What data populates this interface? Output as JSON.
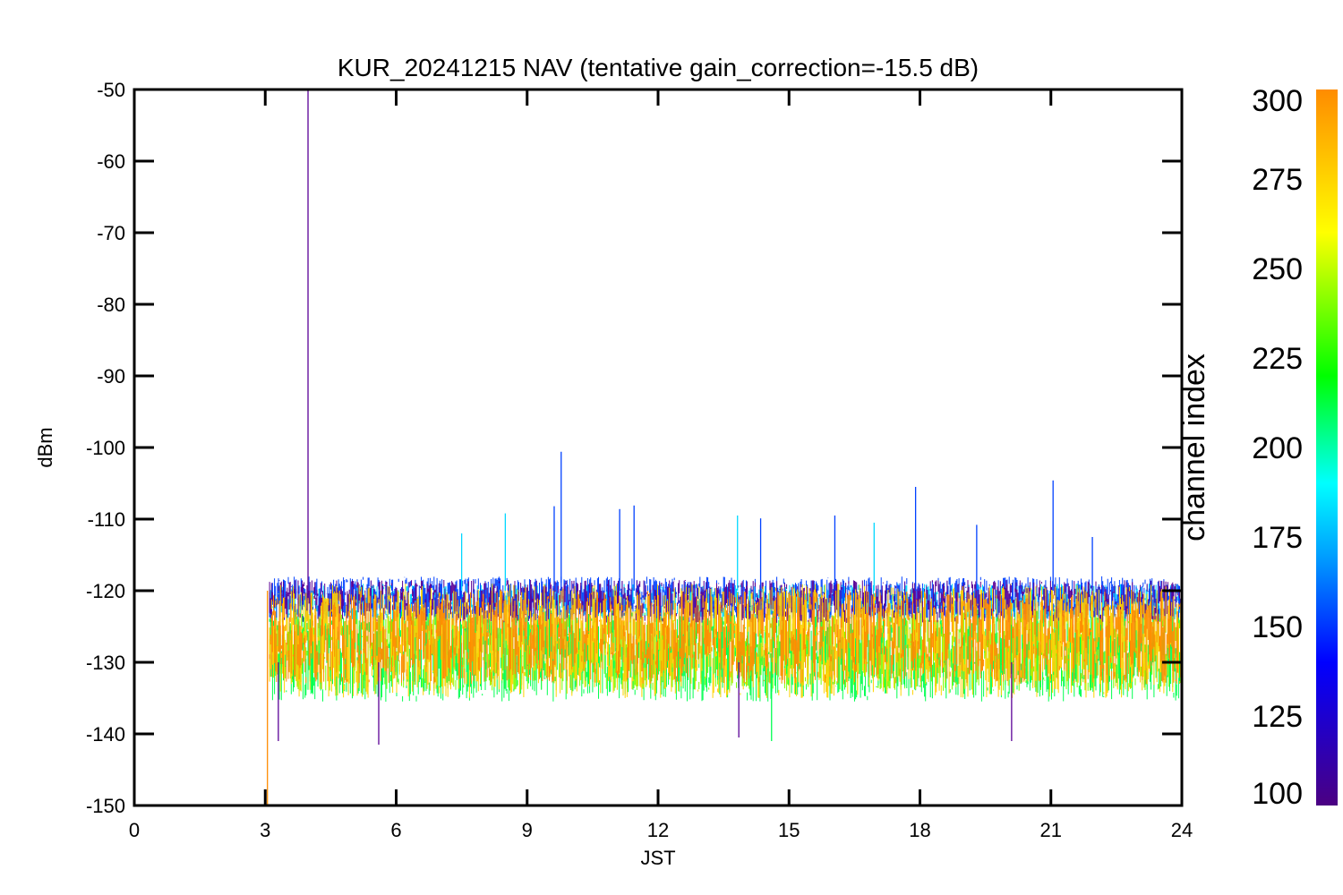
{
  "chart_data": {
    "type": "line",
    "title": "KUR_20241215 NAV (tentative gain_correction=-15.5 dB)",
    "xlabel": "JST",
    "ylabel": "dBm",
    "xlim": [
      0,
      24
    ],
    "ylim": [
      -150,
      -50
    ],
    "x_ticks": [
      0,
      3,
      6,
      9,
      12,
      15,
      18,
      21,
      24
    ],
    "y_ticks": [
      -50,
      -60,
      -70,
      -80,
      -90,
      -100,
      -110,
      -120,
      -130,
      -140,
      -150
    ],
    "colorbar": {
      "label": "channel index",
      "range": [
        100,
        300
      ],
      "ticks": [
        300,
        275,
        250,
        225,
        200,
        175,
        150,
        125,
        100
      ],
      "colormap": "rainbow (purple-blue-cyan-green-yellow-orange)",
      "color_stops": [
        "#4b0082",
        "#0000ff",
        "#00a0ff",
        "#00ffff",
        "#00ff00",
        "#ffff00",
        "#ff8c00"
      ]
    },
    "data_start_hour": 3.1,
    "data_end_hour": 24,
    "series": [
      {
        "channel_index": 290,
        "color": "#ff8c00",
        "band_center": -126.5,
        "band_halfwidth": 6.5
      },
      {
        "channel_index": 270,
        "color": "#ffd200",
        "band_center": -127,
        "band_halfwidth": 8
      },
      {
        "channel_index": 245,
        "color": "#7cff00",
        "band_center": -128.5,
        "band_halfwidth": 5.5
      },
      {
        "channel_index": 215,
        "color": "#00ff50",
        "band_center": -129,
        "band_halfwidth": 6.5
      },
      {
        "channel_index": 175,
        "color": "#00d7ff",
        "band_center": -121.5,
        "band_halfwidth": 2.5
      },
      {
        "channel_index": 140,
        "color": "#0040ff",
        "band_center": -121,
        "band_halfwidth": 3
      },
      {
        "channel_index": 110,
        "color": "#5a0096",
        "band_center": -121.5,
        "band_halfwidth": 3
      }
    ],
    "spikes": [
      {
        "x": 3.98,
        "y_top": -50,
        "y_bottom": -121,
        "color": "#5a0096"
      },
      {
        "x": 3.05,
        "y_top": -150,
        "y_bottom": -120,
        "color": "#ff8c00"
      },
      {
        "x": 9.78,
        "y_top": -100.6,
        "y_bottom": -120,
        "color": "#0040ff"
      },
      {
        "x": 9.62,
        "y_top": -108.2,
        "y_bottom": -120,
        "color": "#0040ff"
      },
      {
        "x": 8.5,
        "y_top": -109.2,
        "y_bottom": -120,
        "color": "#00d7ff"
      },
      {
        "x": 11.12,
        "y_top": -108.6,
        "y_bottom": -120,
        "color": "#0040ff"
      },
      {
        "x": 11.45,
        "y_top": -108.1,
        "y_bottom": -120,
        "color": "#0040ff"
      },
      {
        "x": 13.82,
        "y_top": -109.5,
        "y_bottom": -120,
        "color": "#00d7ff"
      },
      {
        "x": 14.35,
        "y_top": -109.9,
        "y_bottom": -120,
        "color": "#0040ff"
      },
      {
        "x": 16.05,
        "y_top": -109.5,
        "y_bottom": -120,
        "color": "#0040ff"
      },
      {
        "x": 16.95,
        "y_top": -110.5,
        "y_bottom": -120,
        "color": "#00d7ff"
      },
      {
        "x": 17.9,
        "y_top": -105.5,
        "y_bottom": -120,
        "color": "#0040ff"
      },
      {
        "x": 19.3,
        "y_top": -110.8,
        "y_bottom": -120,
        "color": "#0040ff"
      },
      {
        "x": 21.05,
        "y_top": -104.6,
        "y_bottom": -120,
        "color": "#0040ff"
      },
      {
        "x": 21.95,
        "y_top": -112.5,
        "y_bottom": -120,
        "color": "#0040ff"
      },
      {
        "x": 7.5,
        "y_top": -112.0,
        "y_bottom": -120,
        "color": "#00d7ff"
      },
      {
        "x": 5.6,
        "y_top": -141.5,
        "y_bottom": -130,
        "color": "#5a0096"
      },
      {
        "x": 3.3,
        "y_top": -141.0,
        "y_bottom": -130,
        "color": "#5a0096"
      },
      {
        "x": 13.85,
        "y_top": -140.5,
        "y_bottom": -130,
        "color": "#5a0096"
      },
      {
        "x": 14.6,
        "y_top": -141.0,
        "y_bottom": -130,
        "color": "#00ff50"
      },
      {
        "x": 20.1,
        "y_top": -141.0,
        "y_bottom": -130,
        "color": "#5a0096"
      }
    ]
  }
}
